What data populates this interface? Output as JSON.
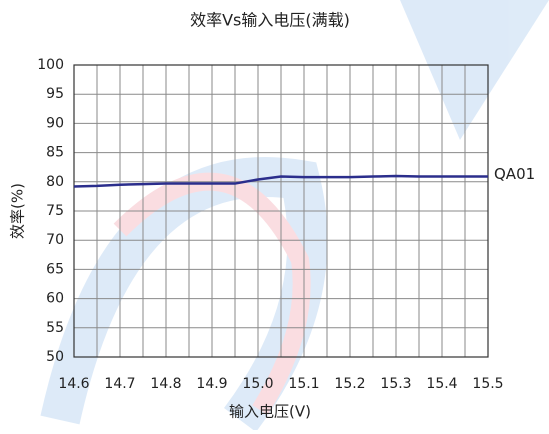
{
  "chart_data": {
    "type": "line",
    "title": "效率Vs输入电压(满载)",
    "x_label": "输入电压(V)",
    "y_label": "效率(%)",
    "x": [
      14.6,
      14.65,
      14.7,
      14.75,
      14.8,
      14.85,
      14.9,
      14.95,
      15.0,
      15.05,
      15.1,
      15.15,
      15.2,
      15.25,
      15.3,
      15.35,
      15.4,
      15.45,
      15.5
    ],
    "series": [
      {
        "name": "QA01",
        "color": "#2b2e8c",
        "values": [
          79.2,
          79.3,
          79.5,
          79.6,
          79.7,
          79.7,
          79.7,
          79.7,
          80.4,
          80.9,
          80.8,
          80.8,
          80.8,
          80.9,
          81.0,
          80.9,
          80.9,
          80.9,
          80.9
        ]
      }
    ],
    "xlim": [
      14.6,
      15.5
    ],
    "ylim": [
      50,
      100
    ],
    "xticks": [
      14.6,
      14.7,
      14.8,
      14.9,
      {
        "value": 15,
        "label": "15.0"
      },
      15.1,
      15.2,
      15.3,
      15.4,
      15.5
    ],
    "xminorticks": [
      14.65,
      14.75,
      14.85,
      14.95,
      15.05,
      15.15,
      15.25,
      15.35,
      15.45
    ],
    "yticks": [
      50,
      55,
      60,
      65,
      70,
      75,
      80,
      85,
      90,
      95,
      100
    ],
    "grid": true
  }
}
